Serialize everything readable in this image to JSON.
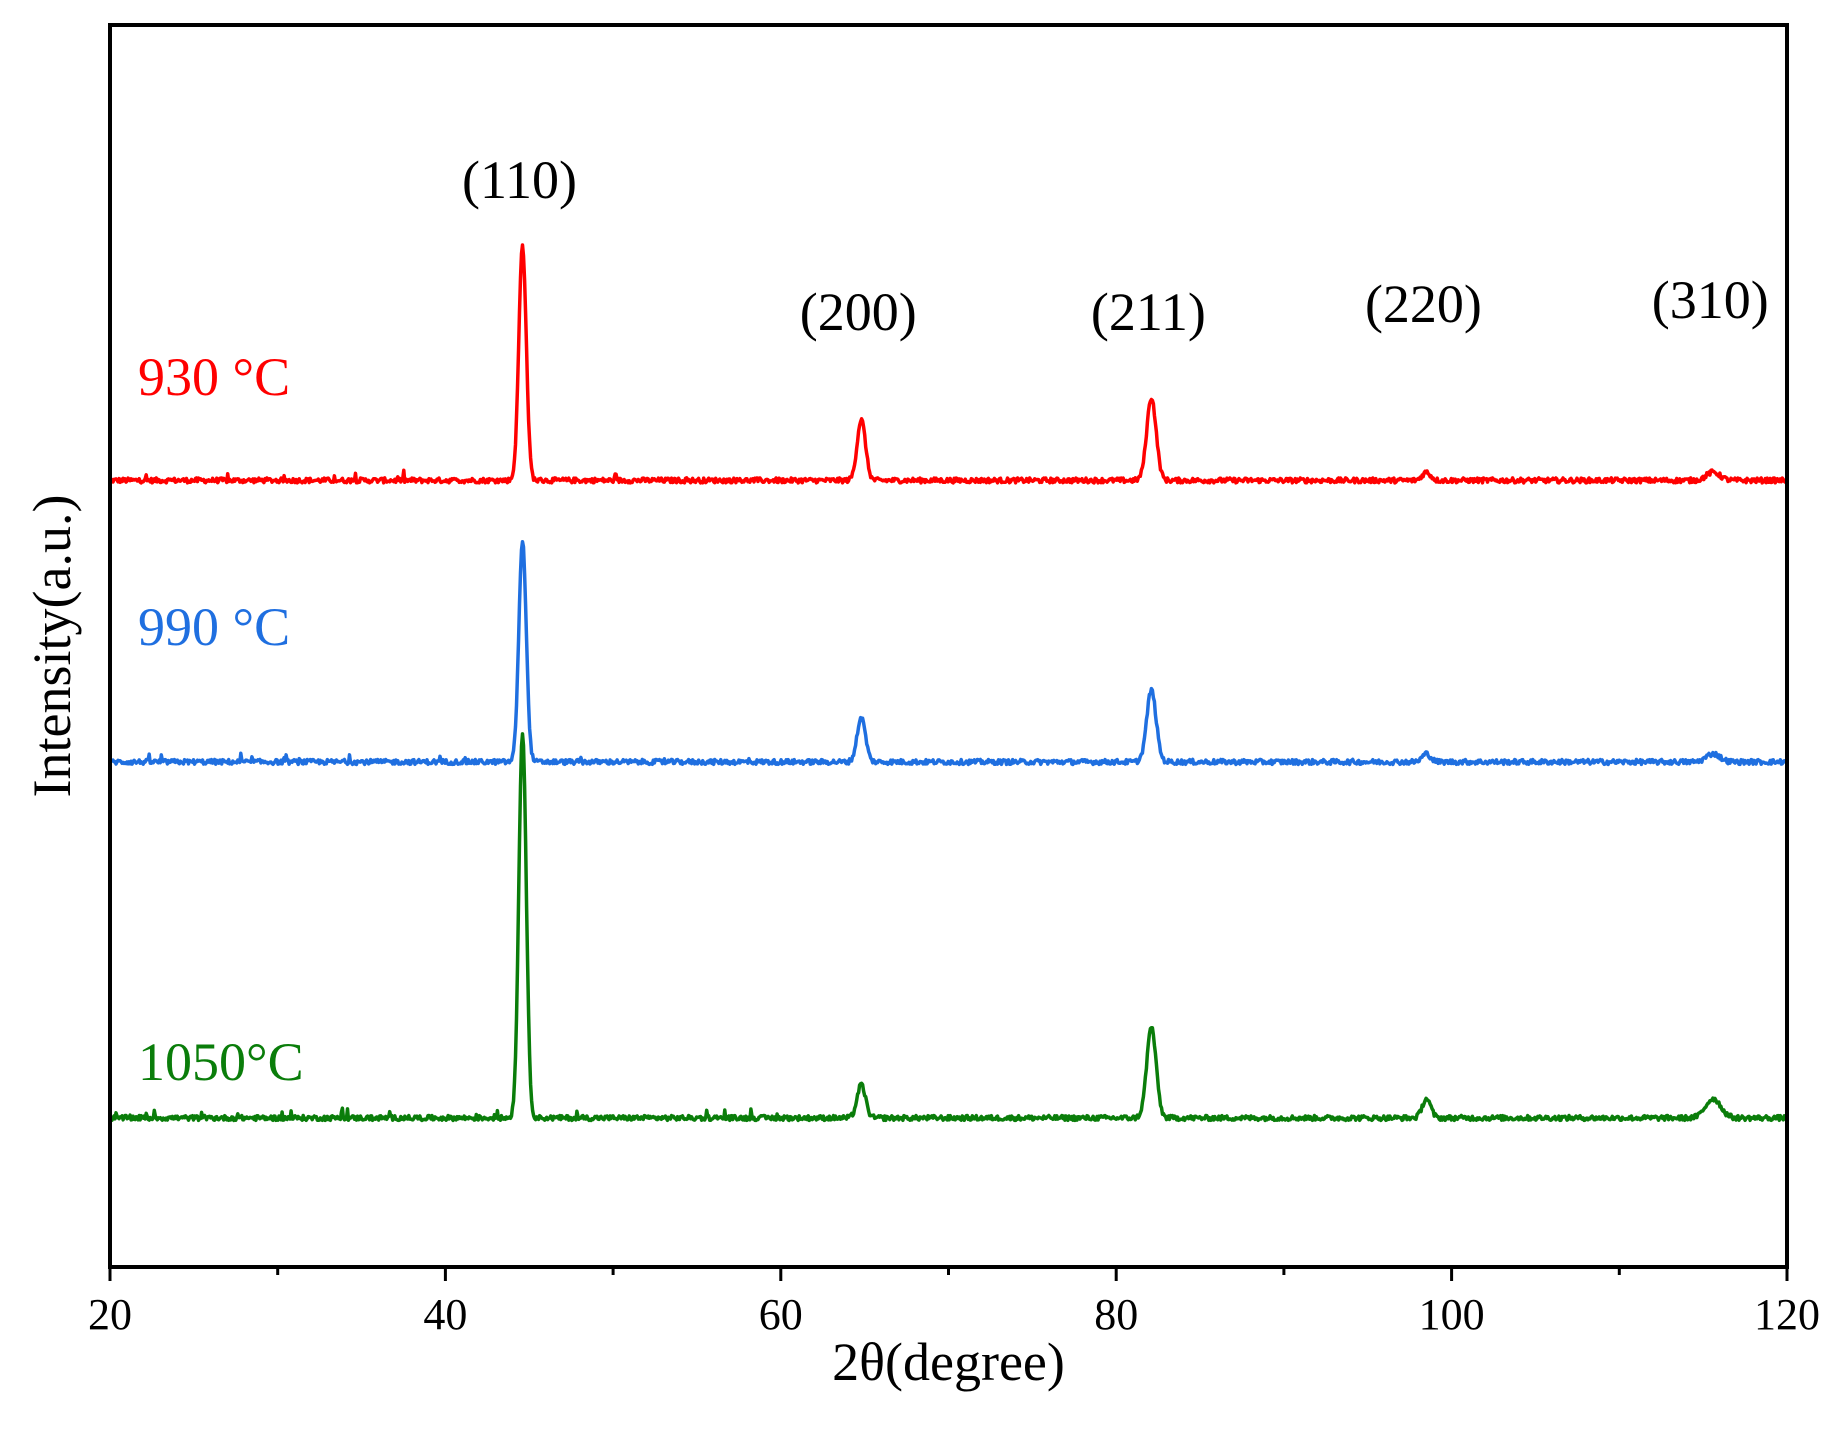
{
  "chart_data": {
    "type": "line",
    "title": "",
    "xlabel": "2θ(degree)",
    "ylabel": "Intensity(a.u.)",
    "xlim": [
      20,
      120
    ],
    "ylim": [
      0,
      4.5
    ],
    "xticks": [
      20,
      40,
      60,
      80,
      100,
      120
    ],
    "xticks_minor": [
      30,
      50,
      70,
      90,
      110
    ],
    "grid": false,
    "legend": "none",
    "peak_positions": [
      44.6,
      64.8,
      82.1,
      98.5,
      115.6
    ],
    "peak_labels": [
      {
        "text": "(110)",
        "x": 44.6
      },
      {
        "text": "(200)",
        "x": 64.8
      },
      {
        "text": "(211)",
        "x": 82.1
      },
      {
        "text": "(220)",
        "x": 98.5
      },
      {
        "text": "(310)",
        "x": 115.6
      }
    ],
    "series": [
      {
        "name": "930 °C",
        "color": "#ff0000",
        "baseline": 2.85,
        "peak_heights": [
          0.85,
          0.22,
          0.3,
          0.03,
          0.03
        ],
        "peak_widths": [
          0.22,
          0.25,
          0.28,
          0.25,
          0.4
        ]
      },
      {
        "name": "990 °C",
        "color": "#1f6fe0",
        "baseline": 1.83,
        "peak_heights": [
          0.8,
          0.16,
          0.26,
          0.03,
          0.03
        ],
        "peak_widths": [
          0.22,
          0.25,
          0.28,
          0.25,
          0.4
        ]
      },
      {
        "name": "1050°C",
        "color": "#0a7d0a",
        "baseline": 0.54,
        "peak_heights": [
          1.4,
          0.12,
          0.33,
          0.07,
          0.07
        ],
        "peak_widths": [
          0.22,
          0.25,
          0.28,
          0.25,
          0.45
        ]
      }
    ]
  }
}
